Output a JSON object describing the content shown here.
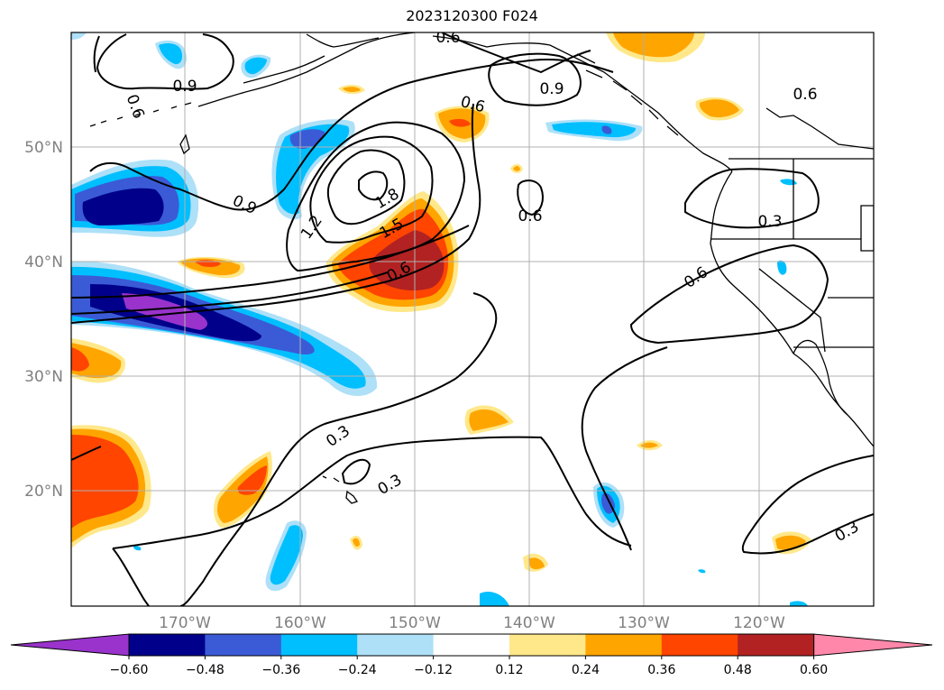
{
  "title": "2023120300 F024",
  "lon_ticks": [
    "170°W",
    "160°W",
    "150°W",
    "140°W",
    "130°W",
    "120°W"
  ],
  "lat_ticks": [
    "50°N",
    "40°N",
    "30°N",
    "20°N"
  ],
  "contour_labels": [
    "0.6",
    "0.9",
    "0.6",
    "0.9",
    "0.6",
    "0.9",
    "1.2",
    "1.8",
    "1.5",
    "0.6",
    "0.6",
    "0.3",
    "0.6",
    "0.3",
    "0.3",
    "0.3",
    "0.6"
  ],
  "colorbar": {
    "colors": [
      "#9933cc",
      "#00008b",
      "#3b5bd6",
      "#00bfff",
      "#aee0f8",
      "#ffffff",
      "#ffe88a",
      "#ffa500",
      "#ff4500",
      "#b22222",
      "#ff88aa"
    ],
    "tick_labels": [
      "−0.60",
      "−0.48",
      "−0.36",
      "−0.24",
      "−0.12",
      "0.12",
      "0.24",
      "0.36",
      "0.48",
      "0.60"
    ],
    "extend": "both"
  },
  "palette": {
    "purple": "#9933cc",
    "navy": "#00008b",
    "blue": "#3b5bd6",
    "cyan": "#00bfff",
    "lightblue": "#aee0f8",
    "yellow": "#ffe88a",
    "orange": "#ffa500",
    "redorange": "#ff4500",
    "darkred": "#b22222"
  }
}
